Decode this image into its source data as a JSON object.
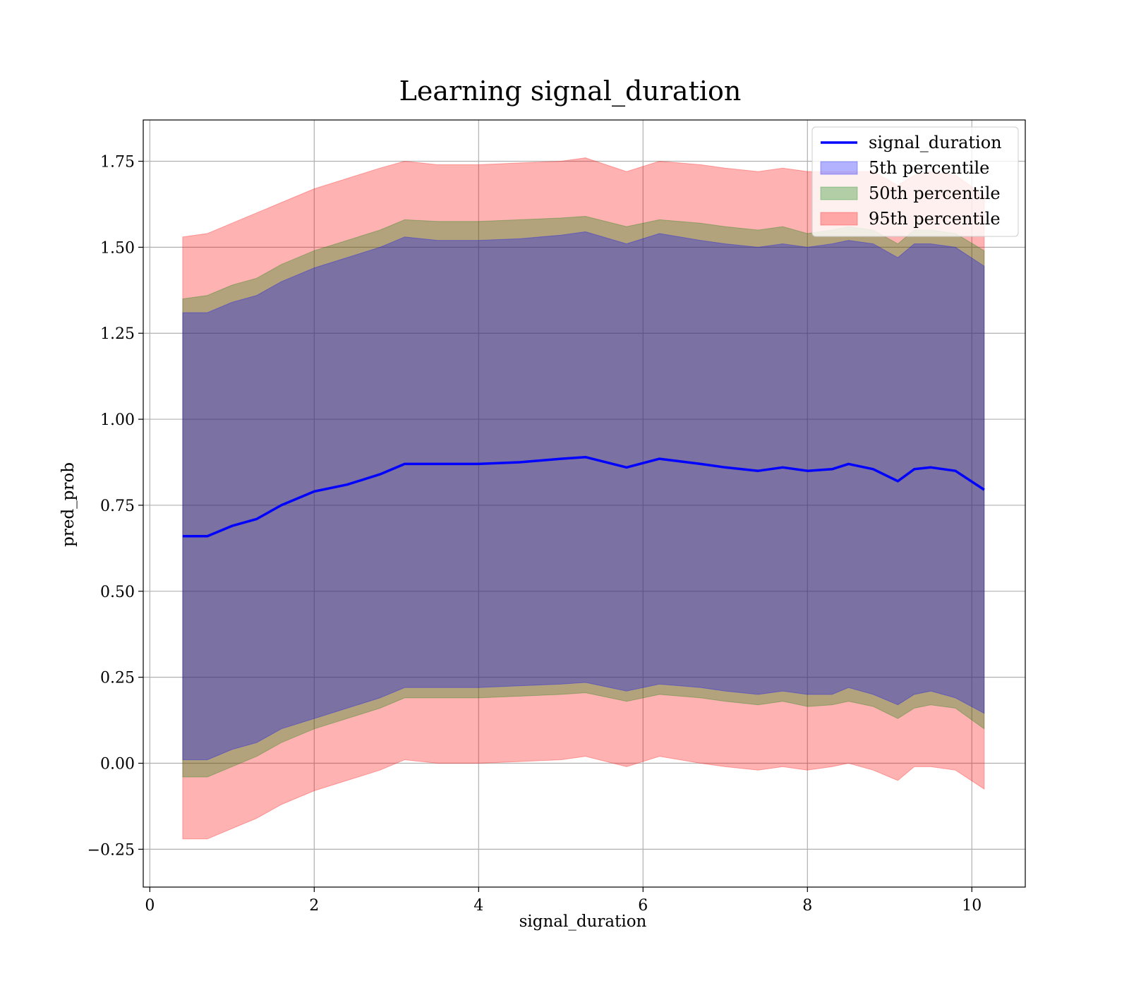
{
  "chart_data": {
    "type": "area",
    "title": "Learning signal_duration",
    "xlabel": "signal_duration",
    "ylabel": "pred_prob",
    "xlim": [
      -0.08,
      10.65
    ],
    "ylim": [
      -0.36,
      1.87
    ],
    "grid": true,
    "legend_position": "top-right",
    "x_ticks": [
      0,
      2,
      4,
      6,
      8,
      10
    ],
    "x_tick_labels": [
      "0",
      "2",
      "4",
      "6",
      "8",
      "10"
    ],
    "y_ticks": [
      -0.25,
      0.0,
      0.25,
      0.5,
      0.75,
      1.0,
      1.25,
      1.5,
      1.75
    ],
    "y_tick_labels": [
      "−0.25",
      "0.00",
      "0.25",
      "0.50",
      "0.75",
      "1.00",
      "1.25",
      "1.50",
      "1.75"
    ],
    "x": [
      0.4,
      0.7,
      1.0,
      1.3,
      1.6,
      2.0,
      2.4,
      2.8,
      3.1,
      3.5,
      4.0,
      4.5,
      5.0,
      5.3,
      5.8,
      6.2,
      6.7,
      7.0,
      7.4,
      7.7,
      8.0,
      8.3,
      8.5,
      8.8,
      9.1,
      9.3,
      9.5,
      9.8,
      10.15
    ],
    "line": {
      "name": "signal_duration",
      "color": "#0000ff",
      "values": [
        0.66,
        0.66,
        0.69,
        0.71,
        0.75,
        0.79,
        0.81,
        0.84,
        0.87,
        0.87,
        0.87,
        0.875,
        0.885,
        0.89,
        0.86,
        0.885,
        0.87,
        0.86,
        0.85,
        0.86,
        0.85,
        0.855,
        0.87,
        0.855,
        0.82,
        0.855,
        0.86,
        0.85,
        0.795
      ]
    },
    "bands": [
      {
        "name": "5th percentile",
        "color": "#0000ff",
        "alpha": 0.3,
        "lower": [
          0.01,
          0.01,
          0.04,
          0.06,
          0.1,
          0.13,
          0.16,
          0.19,
          0.22,
          0.22,
          0.22,
          0.225,
          0.23,
          0.235,
          0.21,
          0.23,
          0.22,
          0.21,
          0.2,
          0.21,
          0.2,
          0.2,
          0.22,
          0.2,
          0.17,
          0.2,
          0.21,
          0.19,
          0.145
        ],
        "upper": [
          1.31,
          1.31,
          1.34,
          1.36,
          1.4,
          1.44,
          1.47,
          1.5,
          1.53,
          1.52,
          1.52,
          1.525,
          1.535,
          1.545,
          1.51,
          1.54,
          1.52,
          1.51,
          1.5,
          1.51,
          1.5,
          1.51,
          1.52,
          1.51,
          1.47,
          1.51,
          1.51,
          1.5,
          1.445
        ]
      },
      {
        "name": "50th percentile",
        "color": "#008000",
        "alpha": 0.3,
        "lower": [
          -0.04,
          -0.04,
          -0.01,
          0.02,
          0.06,
          0.1,
          0.13,
          0.16,
          0.19,
          0.19,
          0.19,
          0.195,
          0.2,
          0.205,
          0.18,
          0.2,
          0.19,
          0.18,
          0.17,
          0.18,
          0.165,
          0.17,
          0.18,
          0.165,
          0.13,
          0.16,
          0.17,
          0.16,
          0.1
        ],
        "upper": [
          1.35,
          1.36,
          1.39,
          1.41,
          1.45,
          1.49,
          1.52,
          1.55,
          1.58,
          1.575,
          1.575,
          1.58,
          1.585,
          1.59,
          1.56,
          1.58,
          1.57,
          1.56,
          1.55,
          1.56,
          1.54,
          1.55,
          1.56,
          1.55,
          1.51,
          1.55,
          1.55,
          1.54,
          1.49
        ]
      },
      {
        "name": "95th percentile",
        "color": "#ff0000",
        "alpha": 0.3,
        "lower": [
          -0.22,
          -0.22,
          -0.19,
          -0.16,
          -0.12,
          -0.08,
          -0.05,
          -0.02,
          0.01,
          0.0,
          0.0,
          0.005,
          0.01,
          0.02,
          -0.01,
          0.02,
          0.0,
          -0.01,
          -0.02,
          -0.01,
          -0.02,
          -0.01,
          0.0,
          -0.02,
          -0.05,
          -0.01,
          -0.01,
          -0.02,
          -0.075
        ],
        "upper": [
          1.53,
          1.54,
          1.57,
          1.6,
          1.63,
          1.67,
          1.7,
          1.73,
          1.75,
          1.74,
          1.74,
          1.745,
          1.75,
          1.76,
          1.72,
          1.75,
          1.74,
          1.73,
          1.72,
          1.73,
          1.72,
          1.72,
          1.72,
          1.72,
          1.68,
          1.71,
          1.72,
          1.71,
          1.65
        ]
      }
    ]
  }
}
